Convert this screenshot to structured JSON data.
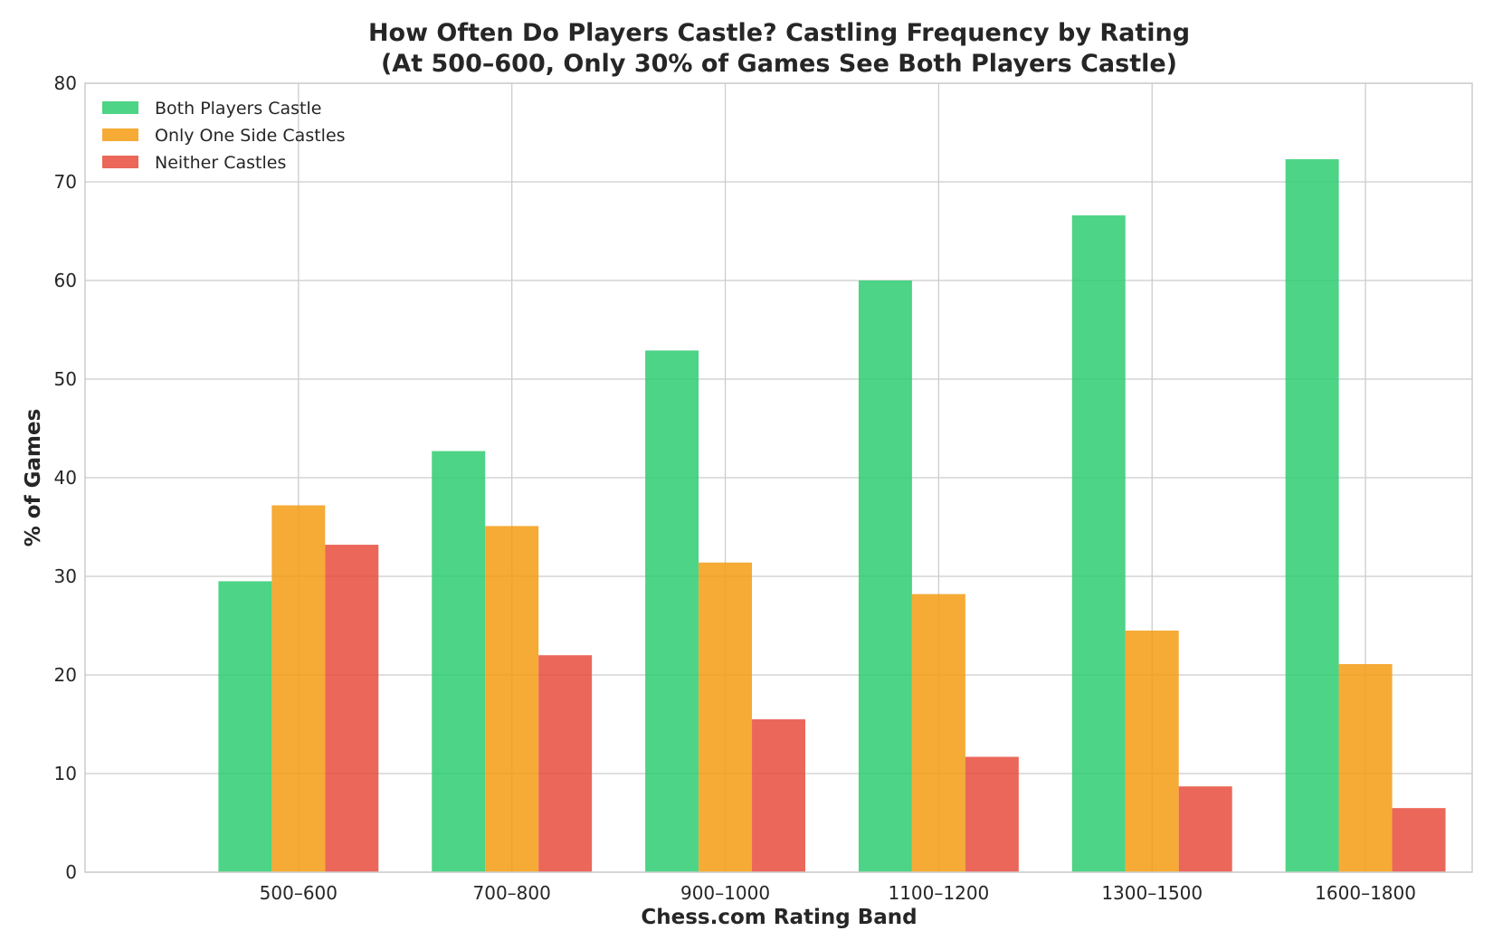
{
  "chart_data": {
    "type": "bar",
    "title": "How Often Do Players Castle? Castling Frequency by Rating",
    "subtitle": "(At 500–600, Only 30% of Games See Both Players Castle)",
    "xlabel": "Chess.com Rating Band",
    "ylabel": "% of Games",
    "categories": [
      "500–600",
      "700–800",
      "900–1000",
      "1100–1200",
      "1300–1500",
      "1600–1800"
    ],
    "series": [
      {
        "name": "Both Players Castle",
        "color": "#2ecc71",
        "values": [
          29.5,
          42.7,
          52.9,
          60.0,
          66.6,
          72.3
        ]
      },
      {
        "name": "Only One Side Castles",
        "color": "#f39c12",
        "values": [
          37.2,
          35.1,
          31.4,
          28.2,
          24.5,
          21.1
        ]
      },
      {
        "name": "Neither Castles",
        "color": "#e74c3c",
        "values": [
          33.2,
          22.0,
          15.5,
          11.7,
          8.7,
          6.5
        ]
      }
    ],
    "ylim": [
      0,
      80
    ],
    "yticks": [
      "0",
      "10",
      "20",
      "30",
      "40",
      "50",
      "60",
      "70",
      "80"
    ],
    "grid": true,
    "legend_position": "top-left"
  }
}
